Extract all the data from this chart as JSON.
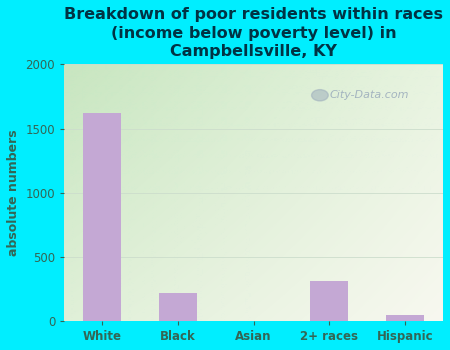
{
  "title": "Breakdown of poor residents within races\n(income below poverty level) in\nCampbellsville, KY",
  "categories": [
    "White",
    "Black",
    "Asian",
    "2+ races",
    "Hispanic"
  ],
  "values": [
    1620,
    220,
    0,
    315,
    50
  ],
  "bar_color": "#c4a8d4",
  "ylabel": "absolute numbers",
  "ylim": [
    0,
    2000
  ],
  "yticks": [
    0,
    500,
    1000,
    1500,
    2000
  ],
  "background_outer": "#00eeff",
  "plot_bg_topleft": "#c8e6c0",
  "plot_bg_bottomright": "#f8f8f0",
  "title_color": "#003344",
  "axis_label_color": "#336655",
  "tick_color": "#336655",
  "grid_color": "#ccddcc",
  "watermark_text": "City-Data.com",
  "watermark_color": "#99aabb",
  "title_fontsize": 11.5,
  "ylabel_fontsize": 9
}
